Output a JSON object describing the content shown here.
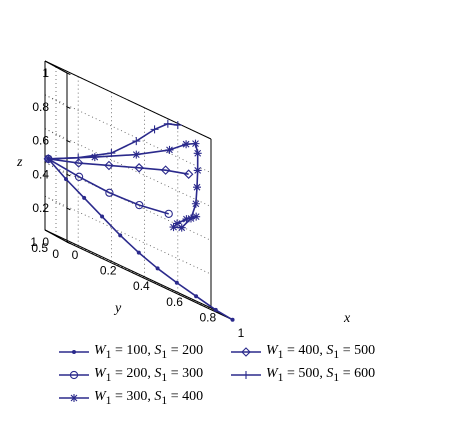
{
  "chart_data": {
    "type": "line",
    "subtype": "3d-trajectory",
    "xlabel": "x",
    "ylabel": "y",
    "zlabel": "z",
    "xlim": [
      0,
      1
    ],
    "ylim": [
      0,
      1
    ],
    "zlim": [
      0,
      1
    ],
    "x_ticks": [
      "0",
      "0.2",
      "0.4",
      "0.6",
      "0.8",
      "1"
    ],
    "y_ticks": [
      "0",
      "0.5",
      "1"
    ],
    "z_ticks": [
      "0",
      "0.2",
      "0.4",
      "0.6",
      "0.8",
      "1"
    ],
    "grid": true,
    "legend_position": "bottom",
    "line_color": "#2b2a8c",
    "series": [
      {
        "name": "W1 = 100, S1 = 200",
        "legend": {
          "w": "100",
          "s": "200"
        },
        "marker": "dot",
        "points": [
          [
            0.02,
            1.0,
            0.43
          ],
          [
            0.12,
            0.95,
            0.36
          ],
          [
            0.22,
            0.88,
            0.3
          ],
          [
            0.32,
            0.82,
            0.24
          ],
          [
            0.42,
            0.75,
            0.18
          ],
          [
            0.52,
            0.66,
            0.13
          ],
          [
            0.62,
            0.56,
            0.09
          ],
          [
            0.72,
            0.44,
            0.06
          ],
          [
            0.82,
            0.32,
            0.035
          ],
          [
            0.92,
            0.18,
            0.01
          ],
          [
            1.0,
            0.02,
            0.0
          ]
        ]
      },
      {
        "name": "W1 = 200, S1 = 300",
        "legend": {
          "w": "200",
          "s": "300"
        },
        "marker": "circle",
        "points": [
          [
            0.02,
            1.0,
            0.43
          ],
          [
            0.2,
            0.96,
            0.41
          ],
          [
            0.38,
            0.94,
            0.4
          ],
          [
            0.56,
            0.94,
            0.41
          ],
          [
            0.74,
            0.96,
            0.44
          ]
        ]
      },
      {
        "name": "W1 = 300, S1 = 400",
        "legend": {
          "w": "300",
          "s": "400"
        },
        "marker": "star",
        "points": [
          [
            0.02,
            1.0,
            0.43
          ],
          [
            0.3,
            1.0,
            0.57
          ],
          [
            0.55,
            1.0,
            0.7
          ],
          [
            0.75,
            1.0,
            0.82
          ],
          [
            0.85,
            1.0,
            0.9
          ],
          [
            0.9,
            0.95,
            0.93
          ],
          [
            0.9,
            0.85,
            0.88
          ],
          [
            0.88,
            0.7,
            0.78
          ],
          [
            0.86,
            0.58,
            0.68
          ],
          [
            0.84,
            0.48,
            0.58
          ],
          [
            0.8,
            0.4,
            0.48
          ],
          [
            0.74,
            0.37,
            0.4
          ],
          [
            0.7,
            0.44,
            0.38
          ],
          [
            0.74,
            0.58,
            0.41
          ],
          [
            0.82,
            0.76,
            0.46
          ],
          [
            0.9,
            0.92,
            0.5
          ]
        ]
      },
      {
        "name": "W1 = 400, S1 = 500",
        "legend": {
          "w": "400",
          "s": "500"
        },
        "marker": "diamond",
        "points": [
          [
            0.02,
            1.0,
            0.43
          ],
          [
            0.2,
            0.98,
            0.49
          ],
          [
            0.38,
            0.96,
            0.56
          ],
          [
            0.56,
            0.95,
            0.63
          ],
          [
            0.72,
            0.95,
            0.69
          ],
          [
            0.86,
            0.96,
            0.73
          ]
        ]
      },
      {
        "name": "W1 = 500, S1 = 600",
        "legend": {
          "w": "500",
          "s": "600"
        },
        "marker": "plus",
        "points": [
          [
            0.02,
            1.0,
            0.43
          ],
          [
            0.2,
            1.0,
            0.52
          ],
          [
            0.4,
            1.0,
            0.64
          ],
          [
            0.55,
            1.0,
            0.78
          ],
          [
            0.66,
            1.0,
            0.9
          ],
          [
            0.74,
            1.0,
            0.97
          ],
          [
            0.8,
            1.0,
            0.99
          ]
        ]
      }
    ]
  }
}
